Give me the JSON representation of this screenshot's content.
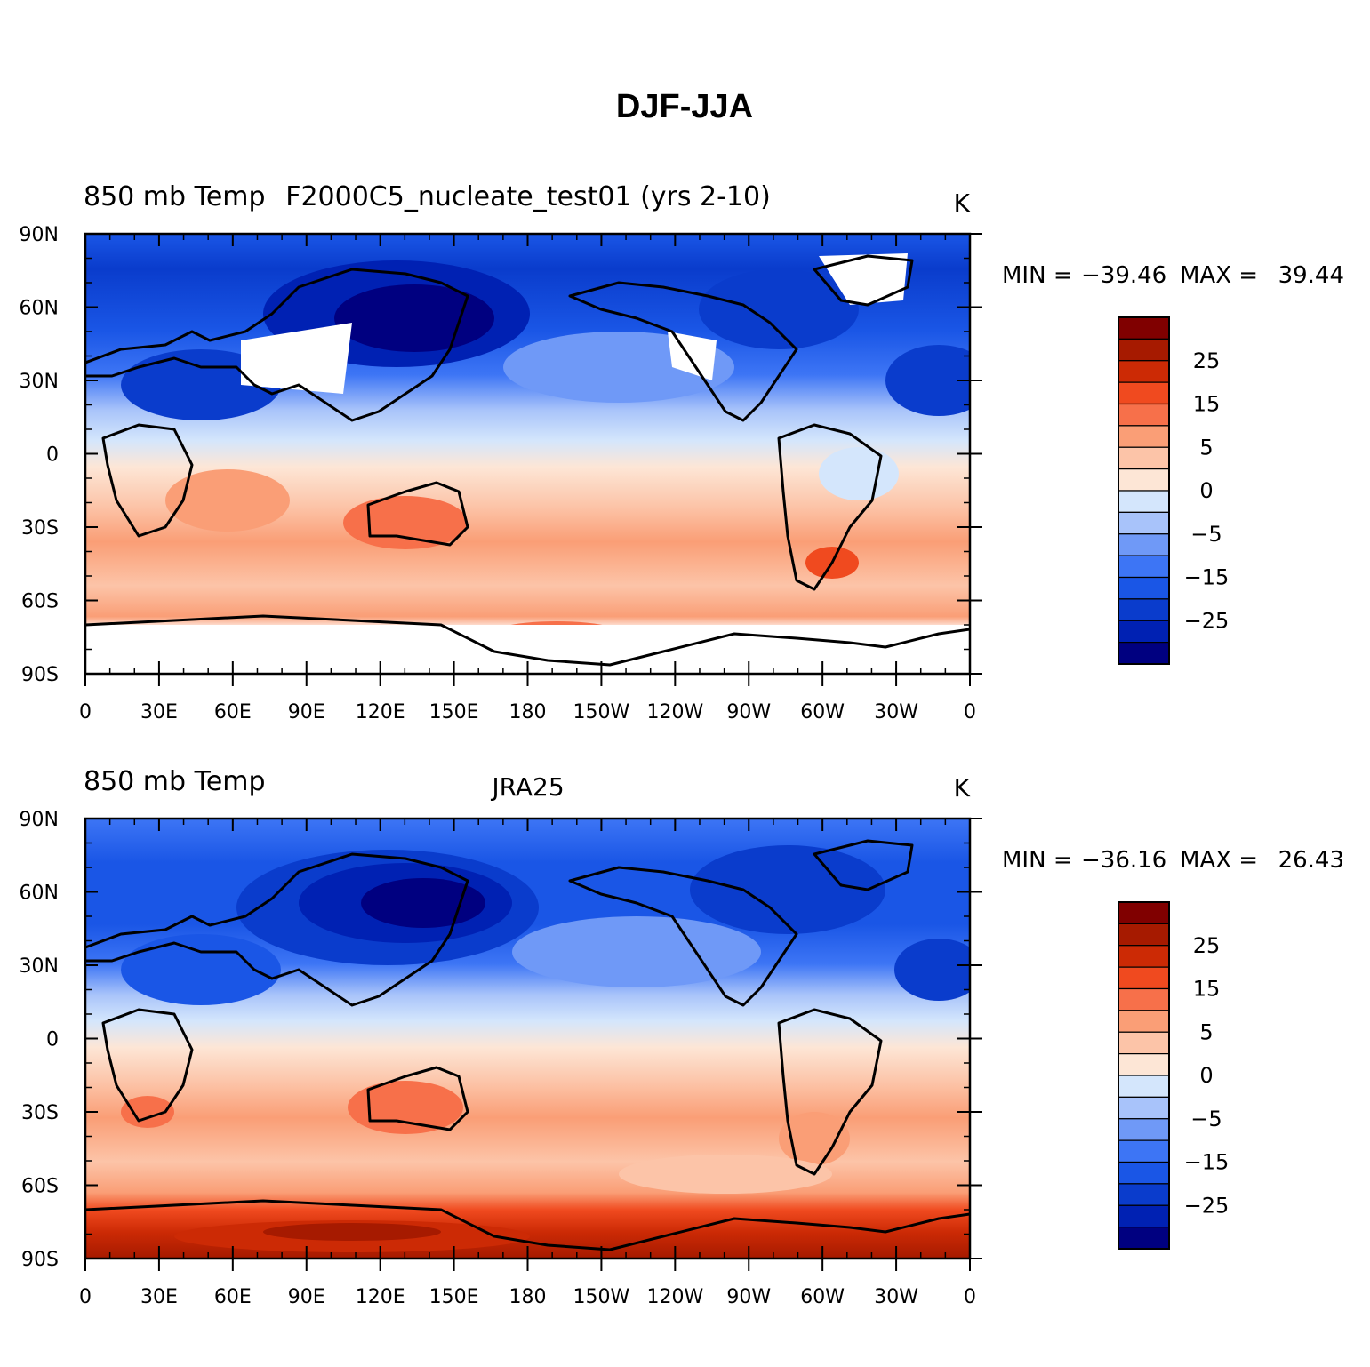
{
  "figure": {
    "title": "DJF-JJA"
  },
  "colors": [
    "#000080",
    "#0021b3",
    "#0a3ccc",
    "#1a56e6",
    "#3d75f5",
    "#6f99f7",
    "#a8c3fa",
    "#d4e6fc",
    "#fde6d6",
    "#fcc4a8",
    "#fa9e76",
    "#f7704a",
    "#f04a1f",
    "#cc2a05",
    "#a61a00",
    "#800000"
  ],
  "chart_data": [
    {
      "type": "contour-map",
      "left_title": "850 mb Temp",
      "center_title": "F2000C5_nucleate_test01 (yrs 2-10)",
      "units": "K",
      "min_label": "MIN =",
      "min_value": "−39.46",
      "max_label": "MAX =",
      "max_value": "39.44",
      "lat_ticks": [
        "90N",
        "60N",
        "30N",
        "0",
        "30S",
        "60S",
        "90S"
      ],
      "lon_ticks": [
        "0",
        "30E",
        "60E",
        "90E",
        "120E",
        "150E",
        "180",
        "150W",
        "120W",
        "90W",
        "60W",
        "30W",
        "0"
      ],
      "colorbar_levels": [
        "25",
        "15",
        "5",
        "0",
        "−5",
        "−15",
        "−25"
      ]
    },
    {
      "type": "contour-map",
      "left_title": "850 mb Temp",
      "center_title": "JRA25",
      "units": "K",
      "min_label": "MIN =",
      "min_value": "−36.16",
      "max_label": "MAX =",
      "max_value": "26.43",
      "lat_ticks": [
        "90N",
        "60N",
        "30N",
        "0",
        "30S",
        "60S",
        "90S"
      ],
      "lon_ticks": [
        "0",
        "30E",
        "60E",
        "90E",
        "120E",
        "150E",
        "180",
        "150W",
        "120W",
        "90W",
        "60W",
        "30W",
        "0"
      ],
      "colorbar_levels": [
        "25",
        "15",
        "5",
        "0",
        "−5",
        "−15",
        "−25"
      ]
    }
  ]
}
